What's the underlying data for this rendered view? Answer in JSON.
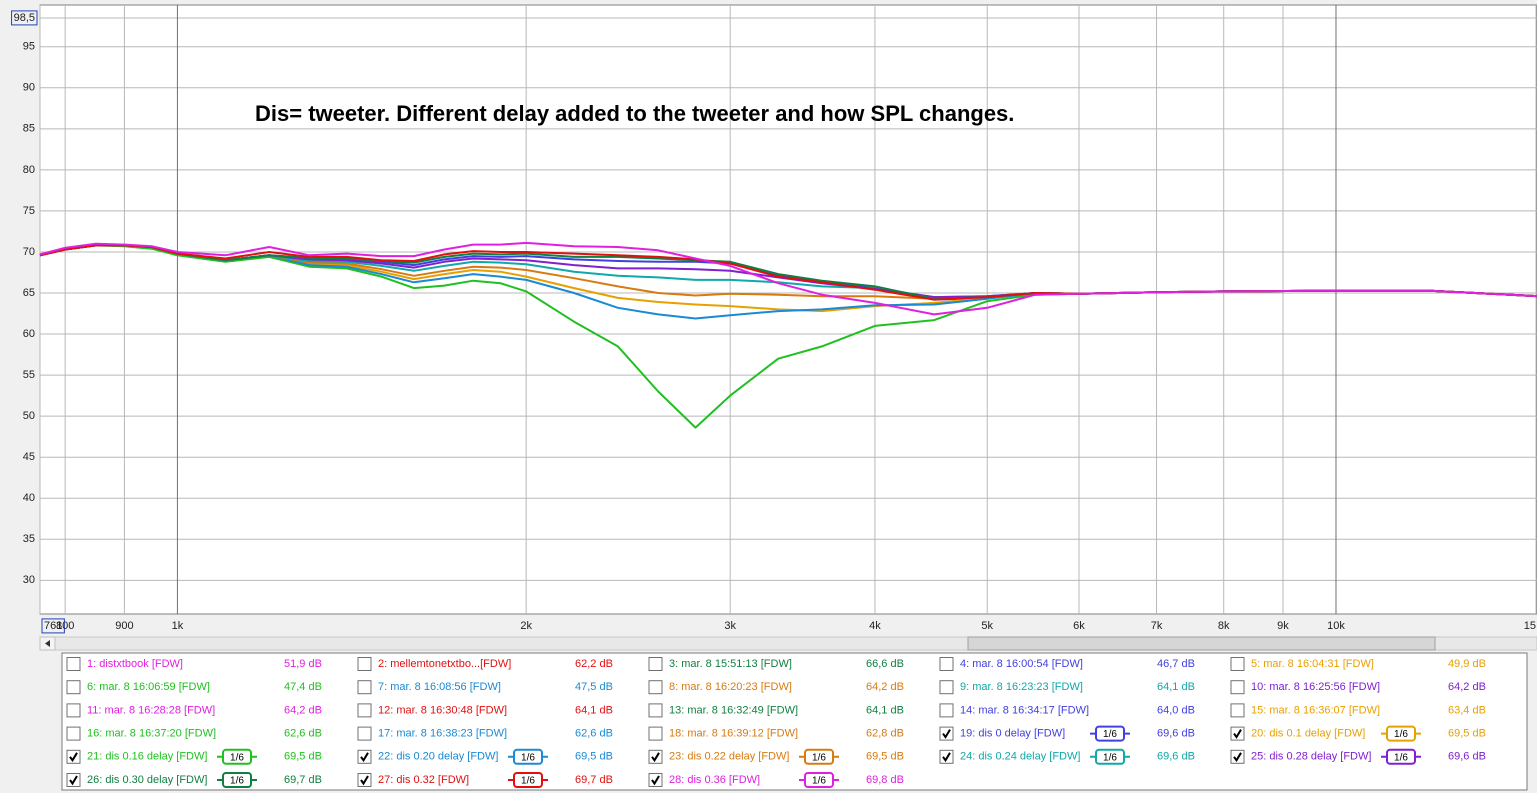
{
  "chart_data": {
    "type": "line",
    "annotation": "Dis= tweeter. Different delay added to the tweeter and how SPL changes.",
    "xscale": "log",
    "grid": true,
    "xlim": [
      761,
      15000
    ],
    "ylim": [
      25.9,
      98.5
    ],
    "xticks": [
      {
        "value": 761,
        "label": "761"
      },
      800,
      900,
      {
        "value": 1000,
        "label": "1k"
      },
      {
        "value": 2000,
        "label": "2k"
      },
      {
        "value": 3000,
        "label": "3k"
      },
      {
        "value": 4000,
        "label": "4k"
      },
      {
        "value": 5000,
        "label": "5k"
      },
      {
        "value": 6000,
        "label": "6k"
      },
      {
        "value": 7000,
        "label": "7k"
      },
      {
        "value": 8000,
        "label": "8k"
      },
      {
        "value": 9000,
        "label": "9k"
      },
      {
        "value": 10000,
        "label": "10k"
      },
      {
        "value": 15000,
        "label": "15"
      }
    ],
    "yticks": [
      {
        "value": 98.5,
        "label": "98,5"
      },
      95,
      90,
      85,
      80,
      75,
      70,
      65,
      60,
      55,
      50,
      45,
      40,
      35,
      30
    ],
    "x": [
      761,
      800,
      850,
      900,
      950,
      1000,
      1100,
      1200,
      1300,
      1400,
      1500,
      1600,
      1700,
      1800,
      1900,
      2000,
      2200,
      2400,
      2600,
      2800,
      3000,
      3300,
      3600,
      4000,
      4500,
      5000,
      5500,
      6000,
      7000,
      8000,
      10000,
      12000,
      15000
    ],
    "series": [
      {
        "name": "1: distxtbook [FDW]",
        "color": "#e020e0",
        "level": "51,9 dB",
        "checked": false
      },
      {
        "name": "2: mellemtonetxtbo...[FDW]",
        "color": "#e01010",
        "level": "62,2 dB",
        "checked": false
      },
      {
        "name": "3: mar. 8 15:51:13 [FDW]",
        "color": "#108040",
        "level": "66,6 dB",
        "checked": false
      },
      {
        "name": "4: mar. 8 16:00:54 [FDW]",
        "color": "#4040e0",
        "level": "46,7 dB",
        "checked": false
      },
      {
        "name": "5: mar. 8 16:04:31 [FDW]",
        "color": "#e8a000",
        "level": "49,9 dB",
        "checked": false
      },
      {
        "name": "6: mar. 8 16:06:59 [FDW]",
        "color": "#20c020",
        "level": "47,4 dB",
        "checked": false
      },
      {
        "name": "7: mar. 8 16:08:56 [FDW]",
        "color": "#1a8ad4",
        "level": "47,5 dB",
        "checked": false
      },
      {
        "name": "8: mar. 8 16:20:23 [FDW]",
        "color": "#d87a10",
        "level": "64,2 dB",
        "checked": false
      },
      {
        "name": "9: mar. 8 16:23:23 [FDW]",
        "color": "#10a8a8",
        "level": "64,1 dB",
        "checked": false
      },
      {
        "name": "10: mar. 8 16:25:56 [FDW]",
        "color": "#8020d0",
        "level": "64,2 dB",
        "checked": false
      },
      {
        "name": "11: mar. 8 16:28:28 [FDW]",
        "color": "#e020e0",
        "level": "64,2 dB",
        "checked": false
      },
      {
        "name": "12: mar. 8 16:30:48 [FDW]",
        "color": "#e01010",
        "level": "64,1 dB",
        "checked": false
      },
      {
        "name": "13: mar. 8 16:32:49 [FDW]",
        "color": "#108040",
        "level": "64,1 dB",
        "checked": false
      },
      {
        "name": "14: mar. 8 16:34:17 [FDW]",
        "color": "#4040e0",
        "level": "64,0 dB",
        "checked": false
      },
      {
        "name": "15: mar. 8 16:36:07 [FDW]",
        "color": "#e8a000",
        "level": "63,4 dB",
        "checked": false
      },
      {
        "name": "16: mar. 8 16:37:20 [FDW]",
        "color": "#20c020",
        "level": "62,6 dB",
        "checked": false
      },
      {
        "name": "17: mar. 8 16:38:23 [FDW]",
        "color": "#1a8ad4",
        "level": "62,6 dB",
        "checked": false
      },
      {
        "name": "18: mar. 8 16:39:12 [FDW]",
        "color": "#d87a10",
        "level": "62,8 dB",
        "checked": false
      },
      {
        "name": "19: dis 0 delay [FDW]",
        "color": "#4040e0",
        "level": "69,6 dB",
        "checked": true,
        "smoothing": "1/6",
        "values": [
          69.6,
          70.3,
          70.8,
          70.8,
          70.6,
          69.8,
          69.0,
          69.6,
          69.2,
          69.1,
          68.8,
          68.4,
          69.1,
          69.5,
          69.4,
          69.5,
          69.1,
          68.9,
          68.8,
          68.8,
          68.6,
          67.2,
          66.4,
          65.6,
          64.2,
          64.4,
          65.0,
          64.9,
          65.1,
          65.2,
          65.3,
          65.3,
          64.6
        ]
      },
      {
        "name": "20: dis 0.1 delay [FDW]",
        "color": "#e8a000",
        "level": "69,5 dB",
        "checked": true,
        "smoothing": "1/6",
        "values": [
          69.6,
          70.3,
          70.8,
          70.8,
          70.6,
          69.8,
          69.0,
          69.6,
          68.5,
          68.4,
          67.6,
          66.7,
          67.3,
          67.8,
          67.6,
          67.0,
          65.6,
          64.4,
          63.9,
          63.6,
          63.4,
          63.0,
          62.8,
          63.4,
          63.8,
          64.4,
          64.9,
          64.9,
          65.1,
          65.2,
          65.3,
          65.3,
          64.6
        ]
      },
      {
        "name": "21: dis 0.16 delay [FDW]",
        "color": "#20c020",
        "level": "69,5 dB",
        "checked": true,
        "smoothing": "1/6",
        "values": [
          69.6,
          70.3,
          70.8,
          70.7,
          70.4,
          69.6,
          68.8,
          69.4,
          68.2,
          68.0,
          67.0,
          65.6,
          65.9,
          66.5,
          66.2,
          65.2,
          61.5,
          58.5,
          53.0,
          48.6,
          52.5,
          57.0,
          58.5,
          61.0,
          61.7,
          64.0,
          64.8,
          64.9,
          65.1,
          65.2,
          65.3,
          65.3,
          64.6
        ]
      },
      {
        "name": "22: dis 0.20 delay [FDW]",
        "color": "#1a8ad4",
        "level": "69,5 dB",
        "checked": true,
        "smoothing": "1/6",
        "values": [
          69.6,
          70.3,
          70.8,
          70.8,
          70.6,
          69.8,
          69.0,
          69.6,
          68.4,
          68.2,
          67.3,
          66.3,
          66.8,
          67.3,
          67.0,
          66.6,
          65.0,
          63.2,
          62.4,
          61.9,
          62.3,
          62.8,
          63.0,
          63.5,
          63.6,
          64.3,
          65.0,
          64.9,
          65.1,
          65.2,
          65.3,
          65.3,
          64.6
        ]
      },
      {
        "name": "23: dis 0.22 delay [FDW]",
        "color": "#d87a10",
        "level": "69,5 dB",
        "checked": true,
        "smoothing": "1/6",
        "values": [
          69.6,
          70.3,
          70.8,
          70.8,
          70.6,
          69.8,
          69.0,
          69.6,
          68.7,
          68.6,
          67.9,
          67.1,
          67.7,
          68.2,
          68.1,
          67.8,
          66.8,
          65.8,
          65.0,
          64.7,
          64.9,
          64.8,
          64.6,
          64.6,
          64.3,
          64.6,
          65.0,
          64.9,
          65.1,
          65.2,
          65.3,
          65.3,
          64.6
        ]
      },
      {
        "name": "24: dis 0.24 delay [FDW]",
        "color": "#10a8a8",
        "level": "69,6 dB",
        "checked": true,
        "smoothing": "1/6",
        "values": [
          69.6,
          70.3,
          70.8,
          70.8,
          70.6,
          69.8,
          69.0,
          69.6,
          68.9,
          68.8,
          68.3,
          67.7,
          68.3,
          68.8,
          68.7,
          68.5,
          67.6,
          67.1,
          66.9,
          66.6,
          66.6,
          66.3,
          65.8,
          65.6,
          64.5,
          64.6,
          65.0,
          64.9,
          65.1,
          65.2,
          65.3,
          65.3,
          64.6
        ]
      },
      {
        "name": "25: dis 0.28 delay [FDW]",
        "color": "#8020d0",
        "level": "69,6 dB",
        "checked": true,
        "smoothing": "1/6",
        "values": [
          69.6,
          70.3,
          70.8,
          70.8,
          70.6,
          69.8,
          69.0,
          69.6,
          69.1,
          69.0,
          68.6,
          68.1,
          68.8,
          69.2,
          69.1,
          69.0,
          68.4,
          68.0,
          68.0,
          67.9,
          67.7,
          66.9,
          66.2,
          65.5,
          64.5,
          64.6,
          65.0,
          64.9,
          65.1,
          65.2,
          65.3,
          65.3,
          64.6
        ]
      },
      {
        "name": "26: dis 0.30 delay [FDW]",
        "color": "#108040",
        "level": "69,7 dB",
        "checked": true,
        "smoothing": "1/6",
        "values": [
          69.6,
          70.3,
          70.8,
          70.8,
          70.6,
          69.8,
          69.0,
          69.6,
          69.3,
          69.2,
          68.9,
          68.7,
          69.4,
          69.8,
          69.7,
          69.8,
          69.4,
          69.4,
          69.2,
          69.0,
          68.8,
          67.3,
          66.5,
          65.8,
          64.3,
          64.5,
          65.0,
          64.9,
          65.1,
          65.2,
          65.3,
          65.3,
          64.6
        ]
      },
      {
        "name": "27: dis 0.32 [FDW]",
        "color": "#e01010",
        "level": "69,7 dB",
        "checked": true,
        "smoothing": "1/6",
        "values": [
          69.6,
          70.3,
          70.8,
          70.8,
          70.6,
          69.8,
          69.2,
          70.0,
          69.4,
          69.4,
          69.0,
          68.9,
          69.7,
          70.1,
          70.0,
          70.0,
          69.8,
          69.6,
          69.4,
          69.1,
          68.6,
          67.0,
          66.3,
          65.4,
          64.2,
          64.5,
          65.0,
          64.9,
          65.1,
          65.2,
          65.3,
          65.3,
          64.6
        ]
      },
      {
        "name": "28: dis 0.36 [FDW]",
        "color": "#e020e0",
        "level": "69,8 dB",
        "checked": true,
        "smoothing": "1/6",
        "values": [
          69.7,
          70.5,
          71.0,
          70.9,
          70.7,
          70.0,
          69.6,
          70.6,
          69.6,
          69.8,
          69.5,
          69.5,
          70.3,
          70.9,
          70.9,
          71.1,
          70.7,
          70.6,
          70.2,
          69.2,
          68.3,
          66.2,
          64.8,
          63.8,
          62.4,
          63.2,
          64.8,
          64.9,
          65.1,
          65.2,
          65.3,
          65.3,
          64.6
        ]
      }
    ]
  }
}
